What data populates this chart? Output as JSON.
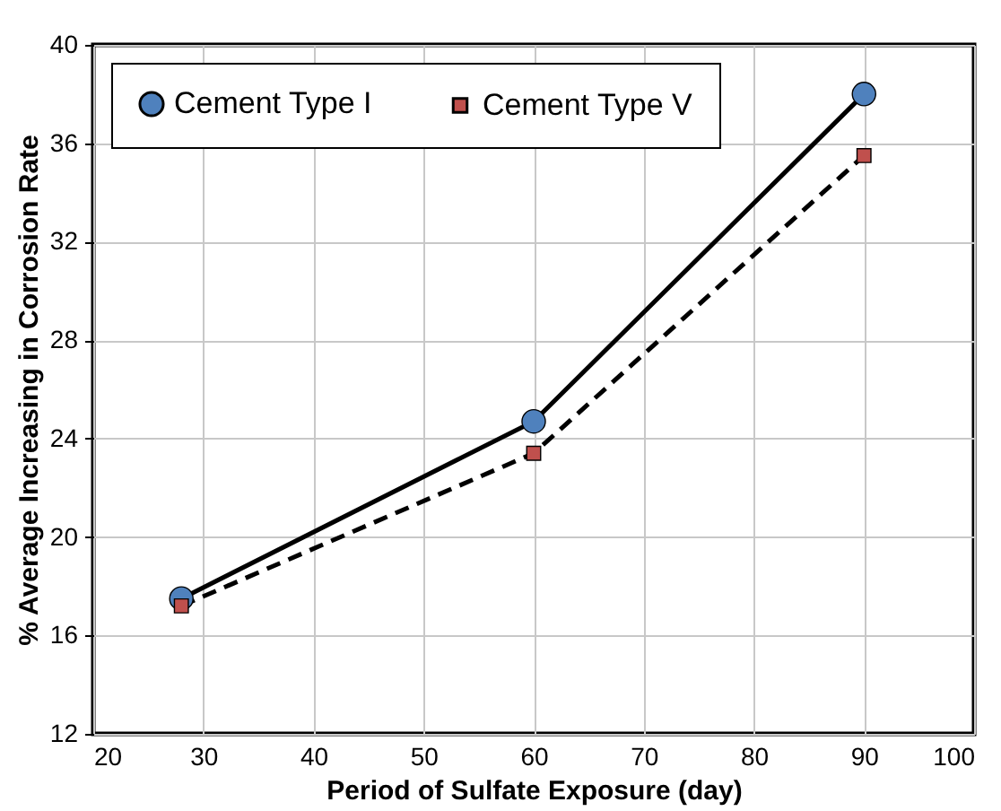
{
  "chart_data": {
    "type": "line",
    "xlabel": "Period of Sulfate Exposure (day)",
    "ylabel": "% Average Increasing in Corrosion Rate",
    "x": [
      28,
      60,
      90
    ],
    "series": [
      {
        "name": "Cement Type I",
        "color": "#4f81bd",
        "values": [
          17.5,
          24.7,
          38.0
        ],
        "marker": "circle",
        "line_style": "solid"
      },
      {
        "name": "Cement Type V",
        "color": "#c0504d",
        "values": [
          17.2,
          23.4,
          35.5
        ],
        "marker": "square",
        "line_style": "dashed"
      }
    ],
    "xlim": [
      20,
      100
    ],
    "xticks": [
      20,
      30,
      40,
      50,
      60,
      70,
      80,
      90,
      100
    ],
    "ylim": [
      12,
      40
    ],
    "yticks": [
      12,
      16,
      20,
      24,
      28,
      32,
      36,
      40
    ],
    "grid": true,
    "legend": "top left"
  }
}
